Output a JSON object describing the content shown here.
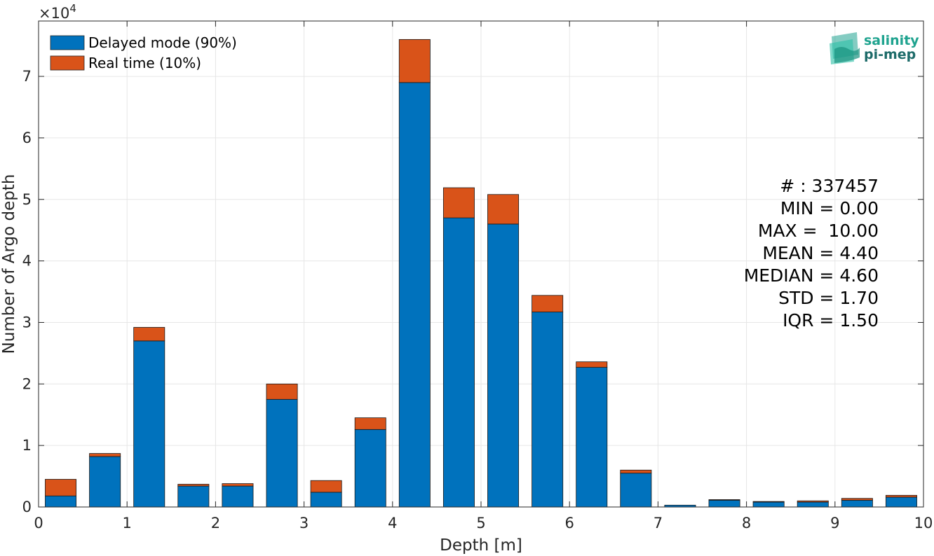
{
  "chart_data": {
    "type": "bar",
    "stacked": true,
    "xlabel": "Depth [m]",
    "ylabel": "Number of Argo depth",
    "y_multiplier": "×10",
    "y_multiplier_exp": "4",
    "xlim": [
      0,
      10
    ],
    "ylim": [
      0,
      7.9
    ],
    "grid": true,
    "legend_position": "top-left",
    "x_ticks": [
      0,
      1,
      2,
      3,
      4,
      5,
      6,
      7,
      8,
      9,
      10
    ],
    "y_ticks": [
      0,
      1,
      2,
      3,
      4,
      5,
      6,
      7
    ],
    "bin_centers": [
      0.25,
      0.75,
      1.25,
      1.75,
      2.25,
      2.75,
      3.25,
      3.75,
      4.25,
      4.75,
      5.25,
      5.75,
      6.25,
      6.75,
      7.25,
      7.75,
      8.25,
      8.75,
      9.25,
      9.75
    ],
    "bin_width": 0.35,
    "series": [
      {
        "name": "Delayed mode (90%)",
        "color": "#0072bd",
        "values": [
          0.18,
          0.82,
          2.7,
          0.34,
          0.34,
          1.75,
          0.24,
          1.26,
          6.9,
          4.7,
          4.6,
          3.17,
          2.27,
          0.55,
          0.03,
          0.11,
          0.08,
          0.08,
          0.11,
          0.16
        ]
      },
      {
        "name": "Real time (10%)",
        "color": "#d95319",
        "values": [
          0.27,
          0.05,
          0.22,
          0.03,
          0.04,
          0.25,
          0.19,
          0.19,
          0.7,
          0.49,
          0.48,
          0.27,
          0.09,
          0.05,
          0.0,
          0.01,
          0.01,
          0.02,
          0.03,
          0.03
        ]
      }
    ],
    "stats": [
      "# : 337457",
      "MIN = 0.00",
      "MAX =  10.00",
      "MEAN = 4.40",
      "MEDIAN = 4.60",
      "STD = 1.70",
      "IQR = 1.50"
    ]
  },
  "logo": {
    "line1": "salinity",
    "line2": "pi-mep",
    "color1": "#1fa38f",
    "color2": "#1d6b69"
  }
}
